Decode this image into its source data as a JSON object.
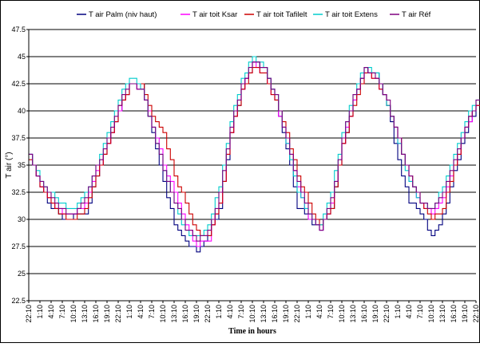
{
  "chart_data": {
    "type": "line",
    "title": "",
    "xlabel": "Time in hours",
    "ylabel": "T air (°)",
    "ylim": [
      22.5,
      47.5
    ],
    "yticks": [
      22.5,
      25,
      27.5,
      30,
      32.5,
      35,
      37.5,
      40,
      42.5,
      45,
      47.5
    ],
    "ytick_labels": [
      "22.5",
      "25",
      "27.5",
      "30",
      "32.5",
      "35",
      "37.5",
      "40",
      "42.5",
      "45",
      "47.5"
    ],
    "grid": true,
    "legend_position": "top",
    "x_start": "22:10",
    "x_step_hours": 3,
    "x_tick_labels": [
      "22:10",
      "1:10",
      "4:10",
      "7:10",
      "10:10",
      "13:10",
      "16:10",
      "19:10",
      "22:10",
      "1:10",
      "4:10",
      "7:10",
      "10:10",
      "13:10",
      "16:10",
      "19:10",
      "22:10",
      "1:10",
      "4:10",
      "7:10",
      "10:10",
      "13:10",
      "16:10",
      "19:10",
      "22:10",
      "1:10",
      "4:10",
      "7:10",
      "10:10",
      "13:10",
      "16:10",
      "19:10",
      "22:10",
      "1:10",
      "4:10",
      "7:10",
      "10:10",
      "13:10",
      "16:10",
      "19:10",
      "22:10"
    ],
    "series": [
      {
        "name": "T air Palm (niv haut)",
        "color": "#00007f",
        "values": [
          35.9,
          32.8,
          31.2,
          30.0,
          30.3,
          30.5,
          34.1,
          36.8,
          40.2,
          42.4,
          42.5,
          38.1,
          33.6,
          29.5,
          27.8,
          27.1,
          28.3,
          31.2,
          38.0,
          42.0,
          44.5,
          44.0,
          41.1,
          36.6,
          31.2,
          30.0,
          29.1,
          31.2,
          36.9,
          40.8,
          43.8,
          43.3,
          40.6,
          35.5,
          31.6,
          30.6,
          28.3,
          30.3,
          34.5,
          38.1,
          40.4,
          40.8,
          38.6,
          35.2
        ]
      },
      {
        "name": "T air toit Ksar",
        "color": "#ff00ff",
        "values": [
          35.8,
          33.1,
          31.6,
          30.4,
          30.4,
          31.5,
          34.3,
          37.0,
          40.1,
          42.5,
          42.1,
          38.6,
          35.2,
          32.3,
          29.3,
          27.7,
          28.2,
          31.4,
          38.1,
          42.1,
          44.3,
          43.3,
          40.8,
          37.2,
          33.0,
          30.2,
          29.0,
          31.4,
          37.1,
          40.9,
          43.6,
          42.9,
          40.6,
          37.1,
          33.6,
          31.3,
          30.5,
          31.9,
          35.1,
          38.5,
          40.6,
          40.5,
          38.7,
          35.4
        ]
      },
      {
        "name": "T air toit Tafilelt",
        "color": "#cc0000",
        "values": [
          35.7,
          32.9,
          31.3,
          30.3,
          30.0,
          30.8,
          34.0,
          37.1,
          40.3,
          42.3,
          42.4,
          39.6,
          37.8,
          34.2,
          31.3,
          28.8,
          28.5,
          31.6,
          38.0,
          42.0,
          44.0,
          43.3,
          40.8,
          37.8,
          34.2,
          31.3,
          29.5,
          31.2,
          36.8,
          40.7,
          43.5,
          42.9,
          40.6,
          37.4,
          33.8,
          31.6,
          30.2,
          31.0,
          35.0,
          38.6,
          40.7,
          40.6,
          38.8,
          35.5
        ]
      },
      {
        "name": "T air toit Extens",
        "color": "#00cccc",
        "values": [
          36.0,
          33.4,
          32.4,
          31.3,
          31.0,
          32.3,
          35.1,
          38.1,
          41.1,
          43.1,
          42.2,
          38.4,
          34.6,
          31.4,
          28.9,
          28.3,
          29.5,
          33.0,
          39.2,
          42.9,
          45.0,
          44.1,
          41.3,
          36.9,
          32.7,
          30.4,
          29.4,
          32.5,
          37.9,
          41.6,
          44.2,
          43.3,
          40.7,
          37.1,
          33.4,
          31.5,
          31.0,
          32.9,
          35.8,
          39.1,
          41.2,
          40.8,
          38.6,
          35.5
        ]
      },
      {
        "name": "T air Réf",
        "color": "#7f007f",
        "values": [
          35.8,
          33.3,
          31.9,
          30.8,
          30.5,
          31.8,
          34.8,
          37.6,
          40.6,
          42.7,
          42.0,
          38.3,
          34.6,
          31.7,
          29.2,
          28.1,
          28.8,
          32.4,
          38.6,
          42.5,
          44.6,
          43.8,
          41.3,
          37.4,
          33.3,
          30.6,
          29.2,
          31.8,
          37.6,
          41.3,
          43.9,
          43.2,
          40.8,
          37.4,
          33.8,
          31.5,
          30.8,
          32.4,
          35.4,
          38.7,
          40.9,
          40.7,
          38.8,
          35.5
        ]
      }
    ]
  }
}
